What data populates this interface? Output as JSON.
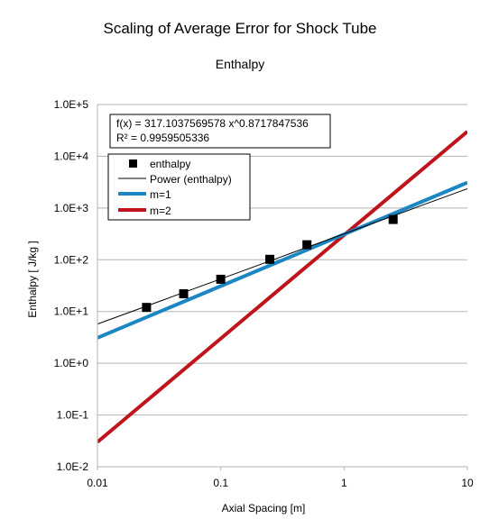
{
  "chart_data": {
    "type": "scatter",
    "title": "Scaling of Average Error for Shock Tube",
    "subtitle": "Enthalpy",
    "xlabel": "Axial Spacing [m]",
    "ylabel": "Enthalpy [ J/kg ]",
    "x_scale": "log",
    "y_scale": "log",
    "xlim": [
      0.01,
      10
    ],
    "ylim": [
      0.01,
      100000
    ],
    "x_ticks": [
      "0.01",
      "0.1",
      "1",
      "10"
    ],
    "y_ticks": [
      "1.0E-2",
      "1.0E-1",
      "1.0E+0",
      "1.0E+1",
      "1.0E+2",
      "1.0E+3",
      "1.0E+4",
      "1.0E+5"
    ],
    "grid": "horizontal",
    "legend_position": "top-left",
    "trendline_equation": "f(x) = 317.1037569578 x^0.8717847536",
    "trendline_r2": "R² = 0.9959505336",
    "series": [
      {
        "name": "enthalpy",
        "kind": "points",
        "color": "#000000",
        "x": [
          0.025,
          0.05,
          0.1,
          0.25,
          0.5,
          2.5
        ],
        "y": [
          12,
          22,
          42,
          102,
          195,
          600
        ]
      },
      {
        "name": "Power (enthalpy)",
        "kind": "power",
        "color": "#000000",
        "a": 317.1037569578,
        "b": 0.8717847536
      },
      {
        "name": "m=1",
        "kind": "power",
        "color": "#1a86c4",
        "a": 310,
        "b": 1
      },
      {
        "name": "m=2",
        "kind": "power",
        "color": "#c0141c",
        "a": 300,
        "b": 2
      }
    ]
  }
}
